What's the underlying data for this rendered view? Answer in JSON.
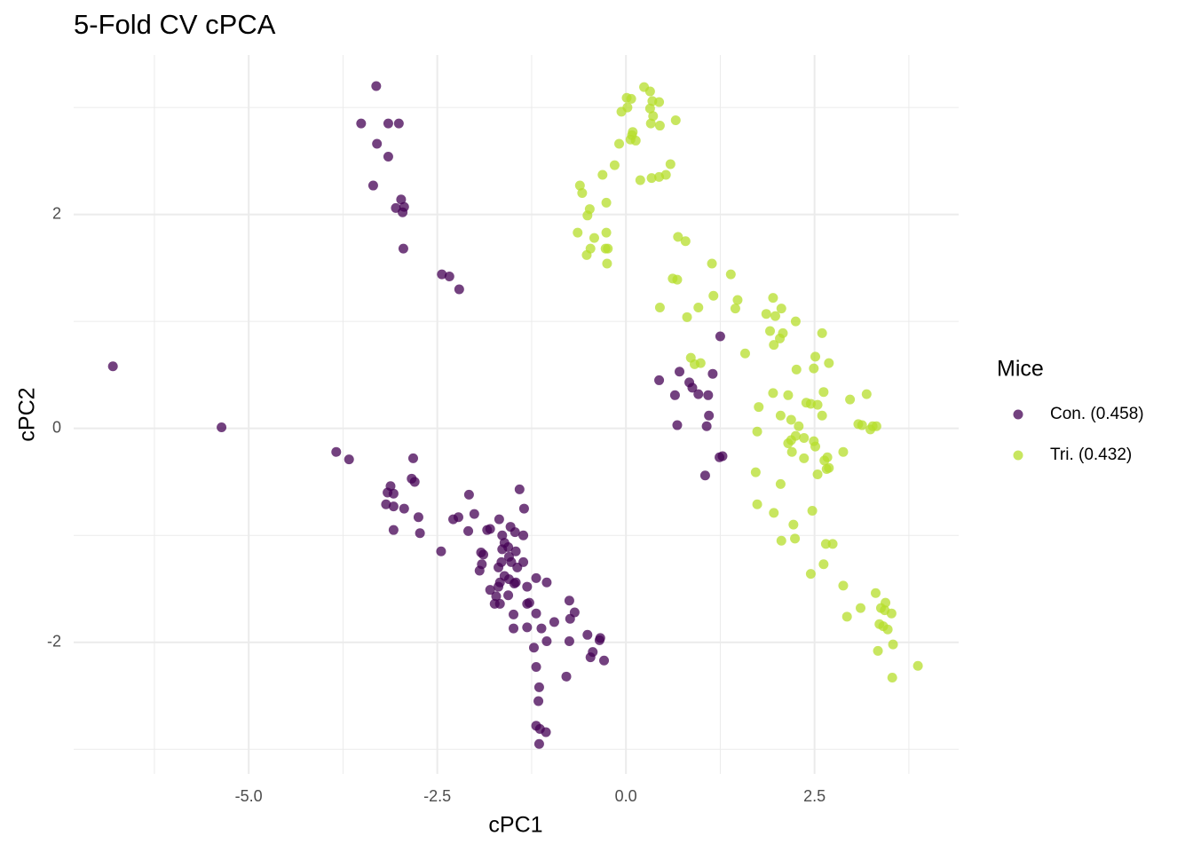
{
  "chart_data": {
    "type": "scatter",
    "title": "5-Fold CV cPCA",
    "xlabel": "cPC1",
    "ylabel": "cPC2",
    "legend_title": "Mice",
    "legend_position": "right",
    "grid": true,
    "xlim": [
      -7.32,
      4.41
    ],
    "ylim": [
      -3.23,
      3.49
    ],
    "xticks": [
      {
        "value": -5,
        "label": "-5.0"
      },
      {
        "value": -2.5,
        "label": "-2.5"
      },
      {
        "value": 0,
        "label": "0.0"
      },
      {
        "value": 2.5,
        "label": "2.5"
      }
    ],
    "xminor": [
      -6.25,
      -3.75,
      -1.25,
      1.25,
      3.75
    ],
    "yticks": [
      -2,
      0,
      2
    ],
    "yminor": [
      -3,
      -1,
      1,
      3
    ],
    "series": [
      {
        "name": "Con. (0.458)",
        "color": "#440154",
        "x": [
          -6.8,
          -5.36,
          -3.31,
          -3.51,
          -3.15,
          -3.01,
          -3.3,
          -3.15,
          -3.35,
          -2.98,
          -3.05,
          -2.96,
          -2.94,
          -2.95,
          -2.44,
          -2.34,
          -2.21,
          1.25,
          0.44,
          0.71,
          1.15,
          0.84,
          0.88,
          0.65,
          0.96,
          1.09,
          1.1,
          0.68,
          1.07,
          1.24,
          1.28,
          1.05,
          -3.84,
          -3.67,
          -2.82,
          -3.12,
          -3.16,
          -3.08,
          -2.84,
          -2.8,
          -3.18,
          -3.08,
          -2.94,
          -2.75,
          -3.08,
          -2.73,
          -2.45,
          -2.08,
          -2.29,
          -2.22,
          -2.01,
          -1.41,
          -1.35,
          -1.68,
          -1.8,
          -1.84,
          -2.09,
          -1.53,
          -1.47,
          -1.36,
          -1.64,
          -1.61,
          -1.64,
          -1.92,
          -1.89,
          -1.56,
          -1.46,
          -1.55,
          -1.91,
          -1.65,
          -1.52,
          -1.44,
          -1.36,
          -1.94,
          -1.69,
          -1.61,
          -1.55,
          -1.67,
          -1.48,
          -1.46,
          -1.8,
          -1.69,
          -1.31,
          -1.19,
          -1.05,
          -1.72,
          -1.56,
          -1.74,
          -1.67,
          -1.28,
          -1.31,
          -1.49,
          -1.19,
          -1.49,
          -1.31,
          -0.95,
          -1.12,
          -0.75,
          -0.68,
          -0.74,
          -1.05,
          -0.75,
          -0.51,
          -0.35,
          -0.34,
          -1.22,
          -0.47,
          -0.44,
          -0.29,
          -1.19,
          -0.79,
          -1.15,
          -1.16,
          -1.19,
          -1.14,
          -1.06,
          -1.15
        ],
        "values": [
          0.58,
          0.01,
          3.2,
          2.85,
          2.85,
          2.85,
          2.66,
          2.54,
          2.27,
          2.14,
          2.06,
          2.02,
          2.07,
          1.68,
          1.44,
          1.42,
          1.3,
          0.86,
          0.45,
          0.53,
          0.51,
          0.43,
          0.38,
          0.31,
          0.32,
          0.31,
          0.12,
          0.03,
          0.02,
          -0.27,
          -0.26,
          -0.44,
          -0.22,
          -0.29,
          -0.28,
          -0.54,
          -0.6,
          -0.61,
          -0.47,
          -0.5,
          -0.71,
          -0.73,
          -0.75,
          -0.83,
          -0.95,
          -0.98,
          -1.15,
          -0.62,
          -0.85,
          -0.83,
          -0.8,
          -0.57,
          -0.75,
          -0.85,
          -0.94,
          -0.95,
          -0.96,
          -0.92,
          -0.97,
          -1.0,
          -1.0,
          -1.07,
          -1.13,
          -1.16,
          -1.18,
          -1.11,
          -1.15,
          -1.2,
          -1.27,
          -1.25,
          -1.25,
          -1.3,
          -1.25,
          -1.33,
          -1.3,
          -1.38,
          -1.41,
          -1.44,
          -1.45,
          -1.44,
          -1.51,
          -1.48,
          -1.48,
          -1.4,
          -1.44,
          -1.57,
          -1.56,
          -1.64,
          -1.64,
          -1.63,
          -1.64,
          -1.74,
          -1.73,
          -1.87,
          -1.86,
          -1.81,
          -1.87,
          -1.61,
          -1.72,
          -1.78,
          -1.99,
          -1.99,
          -1.93,
          -1.98,
          -1.96,
          -2.05,
          -2.14,
          -2.09,
          -2.17,
          -2.23,
          -2.32,
          -2.42,
          -2.55,
          -2.78,
          -2.81,
          -2.84,
          -2.95
        ]
      },
      {
        "name": "Tri. (0.432)",
        "color": "#b5de2b",
        "x": [
          0.24,
          0.32,
          0.01,
          0.07,
          0.44,
          0.35,
          -0.06,
          0.02,
          0.32,
          0.36,
          0.66,
          0.33,
          0.45,
          0.09,
          0.06,
          0.08,
          -0.09,
          0.13,
          0.59,
          -0.15,
          -0.31,
          0.34,
          0.44,
          0.53,
          0.19,
          -0.61,
          -0.58,
          -0.26,
          -0.48,
          -0.51,
          -0.64,
          -0.26,
          -0.42,
          -0.27,
          -0.24,
          -0.47,
          -0.52,
          -0.25,
          0.69,
          0.79,
          0.62,
          0.68,
          1.14,
          1.39,
          1.16,
          1.48,
          0.45,
          0.96,
          1.45,
          1.95,
          0.81,
          1.86,
          1.98,
          2.06,
          2.25,
          1.91,
          2.08,
          2.6,
          2.04,
          1.96,
          2.51,
          1.58,
          0.86,
          0.91,
          0.99,
          2.69,
          2.26,
          2.49,
          1.95,
          2.62,
          3.19,
          2.15,
          2.45,
          2.39,
          2.54,
          2.97,
          1.76,
          2.05,
          2.19,
          2.6,
          3.08,
          3.13,
          3.27,
          3.32,
          3.24,
          2.29,
          1.74,
          2.25,
          2.19,
          2.36,
          2.15,
          2.49,
          2.2,
          2.88,
          2.51,
          2.36,
          2.63,
          2.67,
          2.66,
          2.69,
          1.72,
          2.54,
          2.05,
          1.74,
          2.47,
          1.96,
          2.22,
          2.06,
          2.24,
          2.65,
          2.74,
          2.62,
          2.45,
          2.88,
          3.11,
          3.31,
          3.44,
          3.38,
          3.43,
          3.52,
          2.93,
          3.36,
          3.41,
          3.47,
          3.54,
          3.34,
          3.87,
          3.53
        ],
        "values": [
          3.19,
          3.15,
          3.09,
          3.08,
          3.05,
          3.06,
          2.96,
          3.0,
          2.99,
          2.92,
          2.88,
          2.85,
          2.83,
          2.77,
          2.7,
          2.74,
          2.66,
          2.69,
          2.47,
          2.46,
          2.37,
          2.34,
          2.35,
          2.37,
          2.32,
          2.27,
          2.2,
          2.11,
          2.05,
          1.99,
          1.83,
          1.83,
          1.78,
          1.68,
          1.68,
          1.68,
          1.62,
          1.54,
          1.79,
          1.75,
          1.4,
          1.39,
          1.54,
          1.44,
          1.24,
          1.2,
          1.13,
          1.13,
          1.12,
          1.22,
          1.04,
          1.07,
          1.05,
          1.12,
          1.0,
          0.91,
          0.89,
          0.89,
          0.84,
          0.78,
          0.67,
          0.7,
          0.66,
          0.6,
          0.61,
          0.61,
          0.55,
          0.56,
          0.33,
          0.34,
          0.32,
          0.31,
          0.23,
          0.24,
          0.22,
          0.27,
          0.2,
          0.12,
          0.08,
          0.12,
          0.04,
          0.03,
          0.02,
          0.02,
          -0.01,
          0.02,
          -0.03,
          -0.07,
          -0.11,
          -0.09,
          -0.14,
          -0.12,
          -0.22,
          -0.22,
          -0.17,
          -0.28,
          -0.3,
          -0.27,
          -0.38,
          -0.37,
          -0.41,
          -0.43,
          -0.52,
          -0.71,
          -0.77,
          -0.79,
          -0.9,
          -1.05,
          -1.03,
          -1.08,
          -1.08,
          -1.27,
          -1.36,
          -1.47,
          -1.68,
          -1.54,
          -1.63,
          -1.68,
          -1.7,
          -1.73,
          -1.76,
          -1.83,
          -1.85,
          -1.88,
          -2.02,
          -2.08,
          -2.22,
          -2.33
        ]
      }
    ]
  }
}
